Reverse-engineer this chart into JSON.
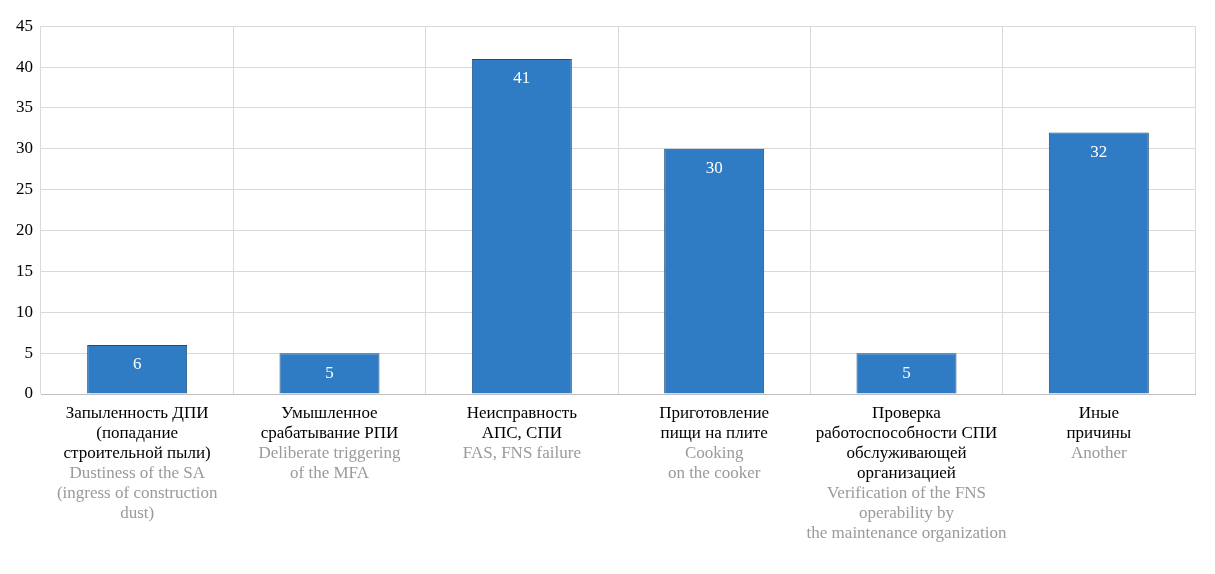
{
  "chart_data": {
    "type": "bar",
    "categories": [
      "Запыленность ДПИ\n(попадание\nстроительной пыли)\n\nDustiness of the SA\n(ingress of construction\ndust)",
      "Умышленное\nсрабатывание РПИ\n\nDeliberate triggering\nof the MFA",
      "Неисправность\nАПС, СПИ\n\nFAS, FNS failure",
      "Приготовление\nпищи на плите\n\nCooking\non the cooker",
      "Проверка\nработоспособности СПИ\nобслуживающей\nорганизацией\n\nVerification of the FNS\noperability by\nthe maintenance organization",
      "Иные\nпричины\n\nAnother"
    ],
    "values": [
      6,
      5,
      41,
      30,
      5,
      32
    ],
    "color": "#2f7cc4",
    "ylim": [
      0,
      45
    ],
    "yticks": [
      0,
      5,
      10,
      15,
      20,
      25,
      30,
      35,
      40,
      45
    ],
    "grid": true,
    "data_labels": true
  }
}
